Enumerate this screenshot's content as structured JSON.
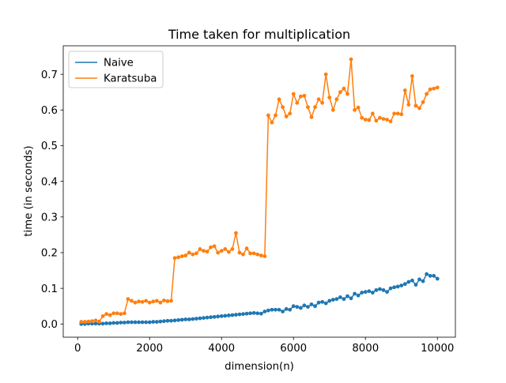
{
  "chart_data": {
    "type": "line",
    "title": "Time taken for multiplication",
    "xlabel": "dimension(n)",
    "ylabel": "time (in seconds)",
    "xlim": [
      -400,
      10500
    ],
    "ylim": [
      -0.037,
      0.78
    ],
    "xticks": [
      0,
      2000,
      4000,
      6000,
      8000,
      10000
    ],
    "xtick_labels": [
      "0",
      "2000",
      "4000",
      "6000",
      "8000",
      "10000"
    ],
    "yticks": [
      0.0,
      0.1,
      0.2,
      0.3,
      0.4,
      0.5,
      0.6,
      0.7
    ],
    "ytick_labels": [
      "0.0",
      "0.1",
      "0.2",
      "0.3",
      "0.4",
      "0.5",
      "0.6",
      "0.7"
    ],
    "grid": false,
    "legend_position": "top-left",
    "x": [
      100,
      200,
      300,
      400,
      500,
      600,
      700,
      800,
      900,
      1000,
      1100,
      1200,
      1300,
      1400,
      1500,
      1600,
      1700,
      1800,
      1900,
      2000,
      2100,
      2200,
      2300,
      2400,
      2500,
      2600,
      2700,
      2800,
      2900,
      3000,
      3100,
      3200,
      3300,
      3400,
      3500,
      3600,
      3700,
      3800,
      3900,
      4000,
      4100,
      4200,
      4300,
      4400,
      4500,
      4600,
      4700,
      4800,
      4900,
      5000,
      5100,
      5200,
      5300,
      5400,
      5500,
      5600,
      5700,
      5800,
      5900,
      6000,
      6100,
      6200,
      6300,
      6400,
      6500,
      6600,
      6700,
      6800,
      6900,
      7000,
      7100,
      7200,
      7300,
      7400,
      7500,
      7600,
      7700,
      7800,
      7900,
      8000,
      8100,
      8200,
      8300,
      8400,
      8500,
      8600,
      8700,
      8800,
      8900,
      9000,
      9100,
      9200,
      9300,
      9400,
      9500,
      9600,
      9700,
      9800,
      9900,
      10000
    ],
    "series": [
      {
        "name": "Naive",
        "color": "#1f77b4",
        "values": [
          0.0,
          0.0,
          0.001,
          0.001,
          0.001,
          0.001,
          0.001,
          0.002,
          0.002,
          0.003,
          0.003,
          0.004,
          0.004,
          0.005,
          0.005,
          0.005,
          0.005,
          0.005,
          0.005,
          0.005,
          0.006,
          0.006,
          0.007,
          0.008,
          0.009,
          0.009,
          0.01,
          0.011,
          0.012,
          0.013,
          0.013,
          0.014,
          0.015,
          0.016,
          0.017,
          0.018,
          0.019,
          0.02,
          0.021,
          0.022,
          0.023,
          0.024,
          0.025,
          0.026,
          0.027,
          0.028,
          0.029,
          0.03,
          0.031,
          0.03,
          0.029,
          0.035,
          0.038,
          0.04,
          0.04,
          0.04,
          0.035,
          0.042,
          0.04,
          0.05,
          0.048,
          0.045,
          0.052,
          0.048,
          0.055,
          0.05,
          0.06,
          0.062,
          0.058,
          0.065,
          0.068,
          0.07,
          0.075,
          0.07,
          0.078,
          0.072,
          0.085,
          0.08,
          0.088,
          0.09,
          0.092,
          0.088,
          0.095,
          0.098,
          0.095,
          0.09,
          0.1,
          0.103,
          0.105,
          0.108,
          0.112,
          0.118,
          0.122,
          0.11,
          0.125,
          0.12,
          0.14,
          0.135,
          0.135,
          0.127
        ]
      },
      {
        "name": "Karatsuba",
        "color": "#ff7f0e",
        "values": [
          0.006,
          0.006,
          0.007,
          0.008,
          0.01,
          0.007,
          0.022,
          0.028,
          0.025,
          0.03,
          0.03,
          0.028,
          0.03,
          0.07,
          0.065,
          0.06,
          0.063,
          0.062,
          0.065,
          0.06,
          0.063,
          0.065,
          0.06,
          0.066,
          0.064,
          0.065,
          0.185,
          0.187,
          0.19,
          0.192,
          0.2,
          0.195,
          0.198,
          0.21,
          0.205,
          0.203,
          0.215,
          0.218,
          0.2,
          0.205,
          0.21,
          0.202,
          0.21,
          0.255,
          0.2,
          0.195,
          0.212,
          0.198,
          0.198,
          0.195,
          0.192,
          0.19,
          0.585,
          0.565,
          0.585,
          0.63,
          0.608,
          0.582,
          0.59,
          0.645,
          0.62,
          0.638,
          0.64,
          0.608,
          0.58,
          0.608,
          0.63,
          0.62,
          0.7,
          0.635,
          0.6,
          0.63,
          0.65,
          0.66,
          0.645,
          0.742,
          0.6,
          0.607,
          0.578,
          0.573,
          0.572,
          0.59,
          0.57,
          0.578,
          0.575,
          0.573,
          0.568,
          0.59,
          0.59,
          0.588,
          0.655,
          0.615,
          0.695,
          0.612,
          0.605,
          0.622,
          0.645,
          0.658,
          0.66,
          0.663
        ]
      }
    ]
  }
}
